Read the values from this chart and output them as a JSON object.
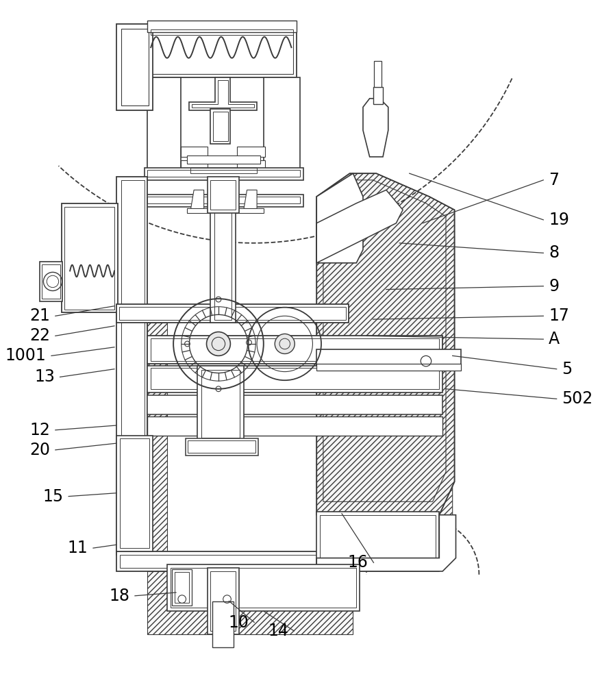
{
  "figsize": [
    8.76,
    10.0
  ],
  "dpi": 100,
  "bg": "#ffffff",
  "lc": "#3a3a3a",
  "lw": 1.2,
  "labels_right": [
    [
      "7",
      800,
      745,
      610,
      680
    ],
    [
      "19",
      800,
      685,
      590,
      755
    ],
    [
      "8",
      800,
      635,
      575,
      650
    ],
    [
      "9",
      800,
      585,
      555,
      580
    ],
    [
      "17",
      800,
      540,
      535,
      535
    ],
    [
      "A",
      800,
      505,
      525,
      510
    ],
    [
      "5",
      820,
      460,
      655,
      480
    ],
    [
      "502",
      820,
      415,
      645,
      430
    ]
  ],
  "labels_left": [
    [
      "21",
      48,
      540,
      145,
      555
    ],
    [
      "22",
      48,
      510,
      145,
      525
    ],
    [
      "1001",
      42,
      480,
      145,
      493
    ],
    [
      "13",
      55,
      448,
      145,
      460
    ],
    [
      "12",
      48,
      368,
      148,
      375
    ],
    [
      "20",
      48,
      338,
      148,
      348
    ],
    [
      "15",
      68,
      268,
      148,
      273
    ],
    [
      "11",
      105,
      190,
      148,
      195
    ],
    [
      "18",
      168,
      118,
      238,
      123
    ],
    [
      "10",
      348,
      78,
      318,
      110
    ],
    [
      "14",
      408,
      65,
      370,
      95
    ],
    [
      "16",
      528,
      168,
      488,
      242
    ]
  ],
  "fs": 17
}
